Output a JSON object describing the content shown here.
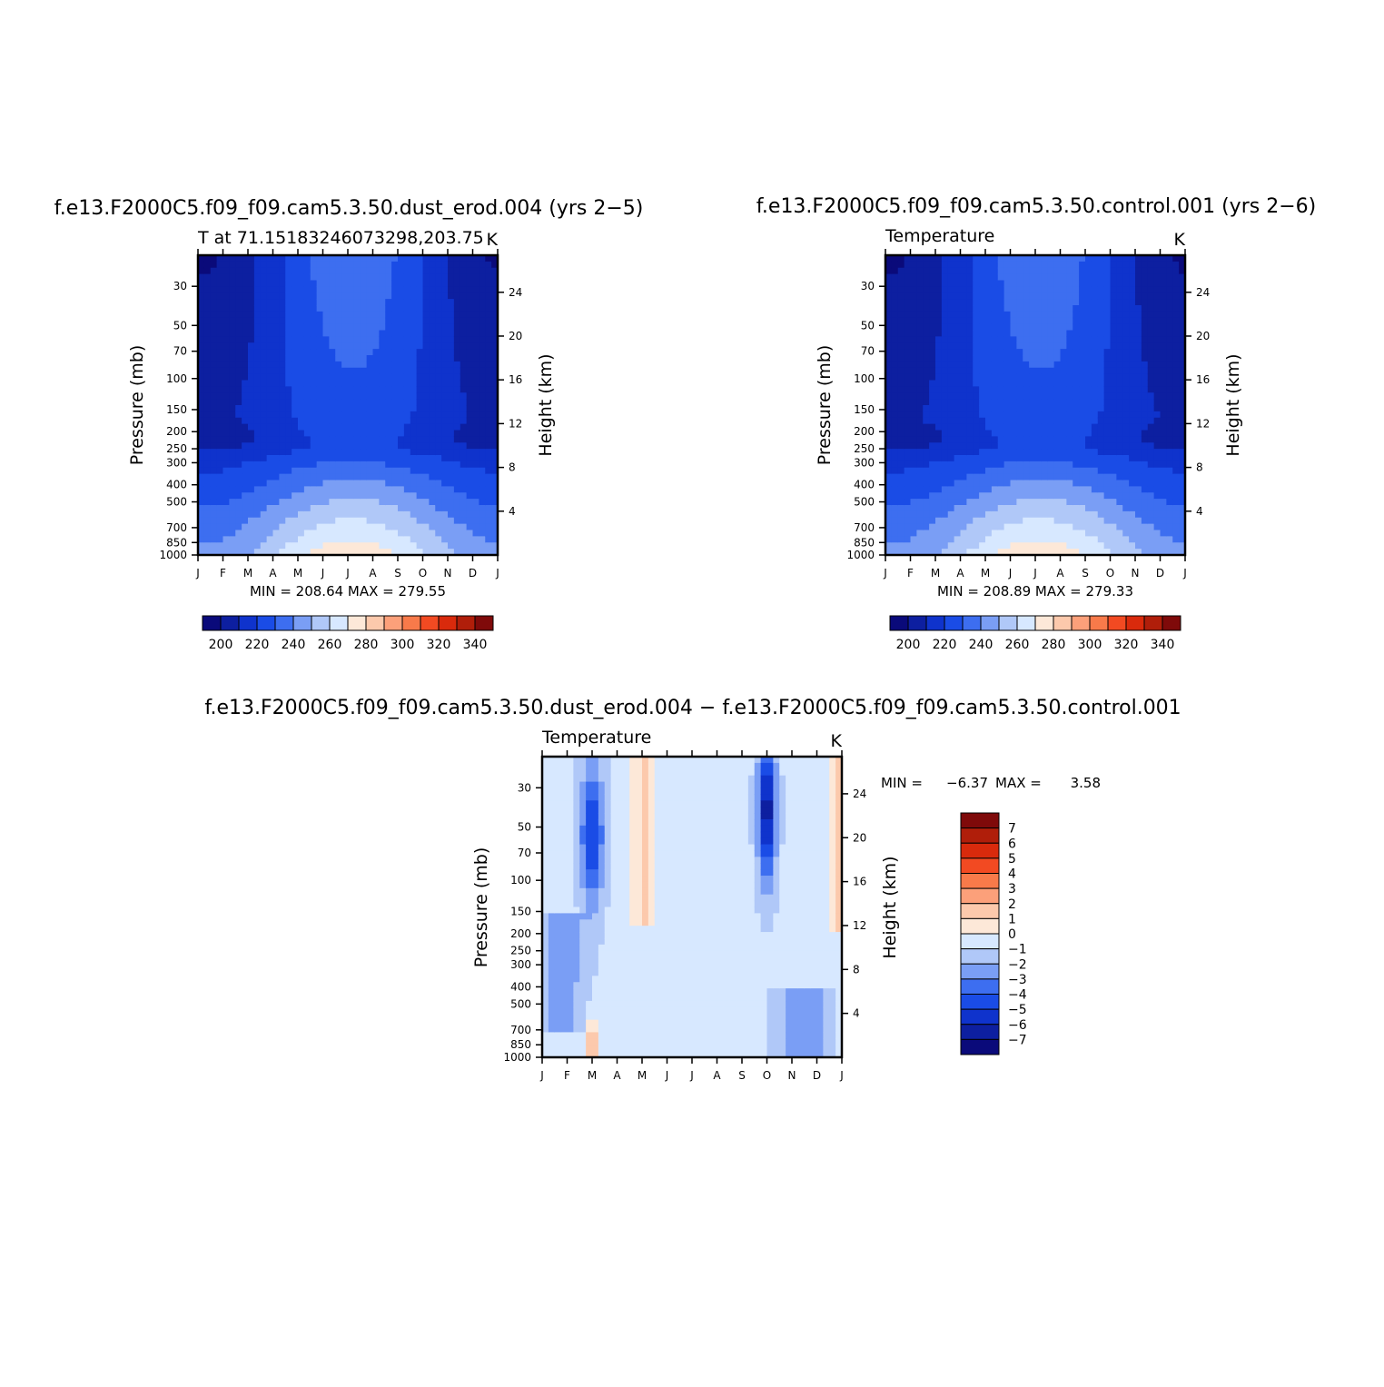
{
  "colors": {
    "abs_palette": [
      "#0a0a7a",
      "#0d1fa0",
      "#0f33cc",
      "#1a4ce6",
      "#3d6ef0",
      "#7a9ef5",
      "#b0c8f8",
      "#d7e8ff",
      "#fde8d8",
      "#fcc9ac",
      "#fca07a",
      "#f87a4a",
      "#f24a22",
      "#d92a0c",
      "#b01e0a",
      "#7f0a0a"
    ],
    "diff_palette": [
      "#0a0a7a",
      "#0d1fa0",
      "#0f33cc",
      "#1a4ce6",
      "#3d6ef0",
      "#7a9ef5",
      "#b0c8f8",
      "#d7e8ff",
      "#fde8d8",
      "#fcc9ac",
      "#fca07a",
      "#f87a4a",
      "#f24a22",
      "#d92a0c",
      "#b01e0a",
      "#7f0a0a"
    ]
  },
  "chart_data": [
    {
      "id": "dust",
      "type": "heatmap",
      "title": "f.e13.F2000C5.f09_f09.cam5.3.50.dust_erod.004 (yrs 2−5)",
      "left_label": "T at 71.15183246073298,203.75",
      "right_label": "K",
      "ylabel": "Pressure (mb)",
      "y2label": "Height (km)",
      "xticks": [
        "J",
        "F",
        "M",
        "A",
        "M",
        "J",
        "J",
        "A",
        "S",
        "O",
        "N",
        "D",
        "J"
      ],
      "yticks": [
        30,
        50,
        70,
        100,
        150,
        200,
        250,
        300,
        400,
        500,
        700,
        850,
        1000
      ],
      "y2ticks": [
        24,
        20,
        16,
        12,
        8,
        4
      ],
      "minmax": "MIN = 208.64  MAX = 279.55",
      "colorbar_labels": [
        "200",
        "220",
        "240",
        "260",
        "280",
        "300",
        "320",
        "340"
      ],
      "levels": [
        200,
        210,
        220,
        230,
        240,
        250,
        260,
        270,
        280,
        290,
        300,
        310,
        320,
        330,
        340
      ],
      "scale": "log-pressure",
      "approx_range": [
        208.64,
        279.55
      ]
    },
    {
      "id": "ctrl",
      "type": "heatmap",
      "title": "f.e13.F2000C5.f09_f09.cam5.3.50.control.001 (yrs 2−6)",
      "left_label": "Temperature",
      "right_label": "K",
      "ylabel": "Pressure (mb)",
      "y2label": "Height (km)",
      "xticks": [
        "J",
        "F",
        "M",
        "A",
        "M",
        "J",
        "J",
        "A",
        "S",
        "O",
        "N",
        "D",
        "J"
      ],
      "yticks": [
        30,
        50,
        70,
        100,
        150,
        200,
        250,
        300,
        400,
        500,
        700,
        850,
        1000
      ],
      "y2ticks": [
        24,
        20,
        16,
        12,
        8,
        4
      ],
      "minmax": "MIN = 208.89  MAX = 279.33",
      "colorbar_labels": [
        "200",
        "220",
        "240",
        "260",
        "280",
        "300",
        "320",
        "340"
      ],
      "levels": [
        200,
        210,
        220,
        230,
        240,
        250,
        260,
        270,
        280,
        290,
        300,
        310,
        320,
        330,
        340
      ],
      "scale": "log-pressure",
      "approx_range": [
        208.89,
        279.33
      ]
    },
    {
      "id": "diff",
      "type": "heatmap",
      "title": "f.e13.F2000C5.f09_f09.cam5.3.50.dust_erod.004 − f.e13.F2000C5.f09_f09.cam5.3.50.control.001",
      "left_label": "Temperature",
      "right_label": "K",
      "ylabel": "Pressure (mb)",
      "y2label": "Height (km)",
      "xticks": [
        "J",
        "F",
        "M",
        "A",
        "M",
        "J",
        "J",
        "A",
        "S",
        "O",
        "N",
        "D",
        "J"
      ],
      "yticks": [
        30,
        50,
        70,
        100,
        150,
        200,
        250,
        300,
        400,
        500,
        700,
        850,
        1000
      ],
      "y2ticks": [
        24,
        20,
        16,
        12,
        8,
        4
      ],
      "minmax_label": "MIN =",
      "min": "−6.37",
      "max_label": "MAX =",
      "max": "3.58",
      "colorbar_labels": [
        "7",
        "6",
        "5",
        "4",
        "3",
        "2",
        "1",
        "0",
        "−1",
        "−2",
        "−3",
        "−4",
        "−5",
        "−6",
        "−7"
      ],
      "levels": [
        -7,
        -6,
        -5,
        -4,
        -3,
        -2,
        -1,
        0,
        1,
        2,
        3,
        4,
        5,
        6,
        7
      ],
      "scale": "log-pressure",
      "approx_range": [
        -6.37,
        3.58
      ]
    }
  ]
}
